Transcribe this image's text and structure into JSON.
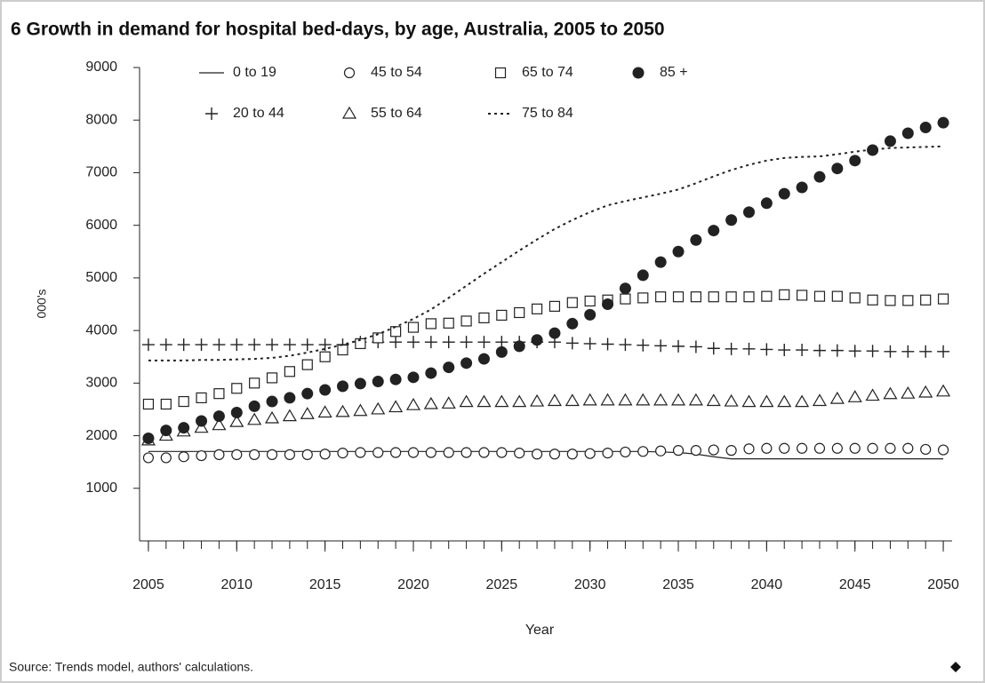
{
  "chart_data": {
    "type": "line",
    "title": "6 Growth in demand for hospital bed-days, by age, Australia, 2005 to 2050",
    "xlabel": "Year",
    "ylabel": "000's",
    "source": "Source: Trends model, authors' calculations.",
    "x": [
      2005,
      2006,
      2007,
      2008,
      2009,
      2010,
      2011,
      2012,
      2013,
      2014,
      2015,
      2016,
      2017,
      2018,
      2019,
      2020,
      2021,
      2022,
      2023,
      2024,
      2025,
      2026,
      2027,
      2028,
      2029,
      2030,
      2031,
      2032,
      2033,
      2034,
      2035,
      2036,
      2037,
      2038,
      2039,
      2040,
      2041,
      2042,
      2043,
      2044,
      2045,
      2046,
      2047,
      2048,
      2049,
      2050
    ],
    "xlim": [
      2004.5,
      2050.5
    ],
    "xticks": [
      2005,
      2010,
      2015,
      2020,
      2025,
      2030,
      2035,
      2040,
      2045,
      2050
    ],
    "ylim": [
      0,
      9000
    ],
    "yticks": [
      1000,
      2000,
      3000,
      4000,
      5000,
      6000,
      7000,
      8000,
      9000
    ],
    "series": [
      {
        "name": "0 to 19",
        "marker": "line",
        "color": "#222",
        "values": [
          1700,
          1700,
          1700,
          1700,
          1700,
          1700,
          1700,
          1700,
          1700,
          1700,
          1700,
          1700,
          1700,
          1700,
          1700,
          1700,
          1700,
          1700,
          1700,
          1700,
          1700,
          1700,
          1700,
          1700,
          1700,
          1700,
          1700,
          1700,
          1700,
          1690,
          1680,
          1650,
          1600,
          1560,
          1560,
          1560,
          1560,
          1560,
          1560,
          1560,
          1560,
          1560,
          1560,
          1560,
          1560,
          1560
        ]
      },
      {
        "name": "20 to 44",
        "marker": "plus",
        "color": "#222",
        "values": [
          3730,
          3730,
          3730,
          3730,
          3730,
          3730,
          3730,
          3730,
          3730,
          3730,
          3730,
          3730,
          3780,
          3780,
          3780,
          3780,
          3780,
          3780,
          3780,
          3780,
          3780,
          3780,
          3780,
          3780,
          3760,
          3750,
          3740,
          3730,
          3720,
          3710,
          3700,
          3690,
          3660,
          3650,
          3650,
          3640,
          3630,
          3630,
          3620,
          3620,
          3610,
          3610,
          3600,
          3600,
          3600,
          3600
        ]
      },
      {
        "name": "45 to 54",
        "marker": "circle",
        "color": "#222",
        "values": [
          1580,
          1580,
          1600,
          1620,
          1640,
          1640,
          1640,
          1640,
          1640,
          1640,
          1650,
          1670,
          1680,
          1680,
          1680,
          1680,
          1680,
          1680,
          1680,
          1680,
          1680,
          1670,
          1650,
          1650,
          1650,
          1660,
          1670,
          1690,
          1700,
          1710,
          1720,
          1720,
          1730,
          1720,
          1750,
          1760,
          1760,
          1760,
          1760,
          1760,
          1760,
          1760,
          1760,
          1760,
          1740,
          1730
        ]
      },
      {
        "name": "55 to 64",
        "marker": "triangle",
        "color": "#222",
        "values": [
          1910,
          2000,
          2080,
          2150,
          2200,
          2260,
          2300,
          2330,
          2370,
          2410,
          2440,
          2450,
          2470,
          2500,
          2540,
          2580,
          2600,
          2610,
          2640,
          2640,
          2640,
          2640,
          2650,
          2660,
          2660,
          2670,
          2670,
          2670,
          2670,
          2670,
          2670,
          2670,
          2660,
          2650,
          2640,
          2640,
          2640,
          2640,
          2660,
          2700,
          2730,
          2760,
          2790,
          2800,
          2820,
          2840
        ]
      },
      {
        "name": "65 to 74",
        "marker": "square",
        "color": "#222",
        "values": [
          2600,
          2600,
          2650,
          2720,
          2800,
          2900,
          3000,
          3100,
          3220,
          3350,
          3500,
          3630,
          3750,
          3860,
          3980,
          4060,
          4130,
          4140,
          4180,
          4240,
          4290,
          4340,
          4410,
          4460,
          4530,
          4560,
          4580,
          4600,
          4620,
          4640,
          4640,
          4640,
          4640,
          4640,
          4640,
          4650,
          4680,
          4670,
          4650,
          4650,
          4620,
          4580,
          4570,
          4570,
          4580,
          4600
        ]
      },
      {
        "name": "75 to 84",
        "marker": "dotted",
        "color": "#222",
        "values": [
          3430,
          3430,
          3430,
          3440,
          3440,
          3450,
          3460,
          3480,
          3520,
          3580,
          3650,
          3730,
          3820,
          3930,
          4070,
          4220,
          4400,
          4620,
          4850,
          5080,
          5300,
          5520,
          5730,
          5930,
          6100,
          6250,
          6380,
          6460,
          6530,
          6600,
          6680,
          6800,
          6930,
          7050,
          7150,
          7230,
          7280,
          7300,
          7310,
          7350,
          7400,
          7440,
          7470,
          7480,
          7490,
          7500
        ]
      },
      {
        "name": "85 +",
        "marker": "disc",
        "color": "#222",
        "values": [
          1950,
          2100,
          2150,
          2280,
          2370,
          2440,
          2560,
          2650,
          2720,
          2800,
          2870,
          2940,
          2990,
          3030,
          3070,
          3110,
          3190,
          3300,
          3380,
          3460,
          3590,
          3700,
          3820,
          3950,
          4130,
          4300,
          4500,
          4800,
          5050,
          5300,
          5500,
          5720,
          5900,
          6100,
          6250,
          6420,
          6600,
          6720,
          6920,
          7080,
          7230,
          7430,
          7600,
          7750,
          7860,
          7950
        ]
      }
    ]
  }
}
